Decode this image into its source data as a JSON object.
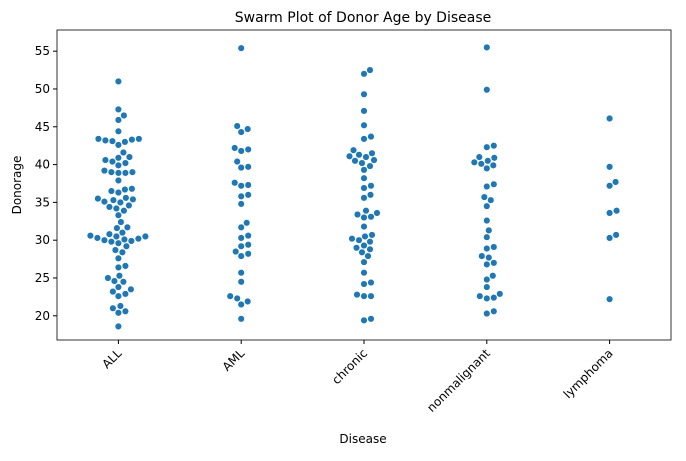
{
  "chart_data": {
    "type": "swarm",
    "title": "Swarm Plot of Donor Age by Disease",
    "xlabel": "Disease",
    "ylabel": "Donorage",
    "categories": [
      "ALL",
      "AML",
      "chronic",
      "nonmalignant",
      "lymphoma"
    ],
    "color": "#1f77b4",
    "values": [
      [
        51.0,
        47.3,
        46.5,
        45.9,
        44.4,
        43.4,
        43.3,
        43.2,
        43.1,
        43.0,
        43.4,
        42.6,
        41.6,
        41.0,
        40.9,
        40.6,
        40.4,
        40.2,
        39.9,
        39.2,
        39.0,
        38.9,
        38.9,
        39.0,
        37.9,
        36.8,
        36.7,
        36.5,
        36.3,
        35.6,
        35.5,
        35.4,
        35.3,
        35.1,
        35.0,
        34.6,
        34.4,
        34.2,
        33.9,
        33.3,
        32.4,
        31.7,
        31.6,
        31.0,
        30.8,
        30.6,
        30.5,
        30.5,
        30.3,
        30.2,
        30.1,
        30.0,
        29.9,
        29.8,
        29.6,
        29.2,
        28.7,
        28.4,
        27.6,
        26.6,
        26.4,
        25.3,
        25.0,
        24.6,
        24.5,
        23.8,
        23.5,
        23.2,
        22.9,
        22.6,
        21.3,
        21.0,
        20.6,
        20.4,
        18.6
      ],
      [
        55.4,
        45.1,
        44.7,
        44.3,
        42.2,
        42.0,
        41.8,
        40.4,
        39.7,
        39.6,
        37.6,
        37.3,
        37.2,
        36.0,
        35.8,
        34.8,
        32.3,
        31.7,
        30.6,
        30.3,
        29.4,
        29.2,
        28.5,
        28.2,
        27.9,
        25.7,
        24.5,
        22.6,
        22.3,
        21.9,
        21.5,
        19.6
      ],
      [
        52.5,
        52.0,
        49.3,
        47.1,
        45.2,
        43.7,
        43.4,
        41.9,
        41.5,
        41.3,
        41.1,
        41.0,
        40.6,
        40.5,
        40.2,
        39.8,
        39.3,
        38.2,
        37.2,
        36.9,
        36.0,
        35.6,
        33.9,
        33.6,
        33.4,
        33.1,
        33.0,
        31.8,
        30.7,
        30.5,
        30.2,
        30.0,
        29.8,
        29.3,
        29.0,
        28.8,
        28.4,
        27.9,
        27.1,
        25.7,
        24.4,
        24.2,
        22.8,
        22.6,
        22.6,
        19.6,
        19.4
      ],
      [
        55.5,
        49.9,
        42.5,
        42.3,
        41.0,
        40.9,
        40.5,
        40.3,
        40.1,
        39.9,
        39.5,
        37.4,
        37.1,
        35.7,
        35.3,
        34.5,
        32.6,
        31.3,
        30.4,
        29.1,
        28.9,
        27.9,
        27.7,
        27.0,
        26.8,
        25.3,
        24.8,
        23.8,
        22.9,
        22.6,
        22.4,
        22.3,
        20.6,
        20.3
      ],
      [
        46.1,
        39.7,
        37.7,
        37.2,
        33.9,
        33.6,
        30.7,
        30.3,
        22.2
      ]
    ],
    "ylim": [
      16.8,
      57.8
    ],
    "yticks": [
      20,
      25,
      30,
      35,
      40,
      45,
      50,
      55
    ]
  }
}
